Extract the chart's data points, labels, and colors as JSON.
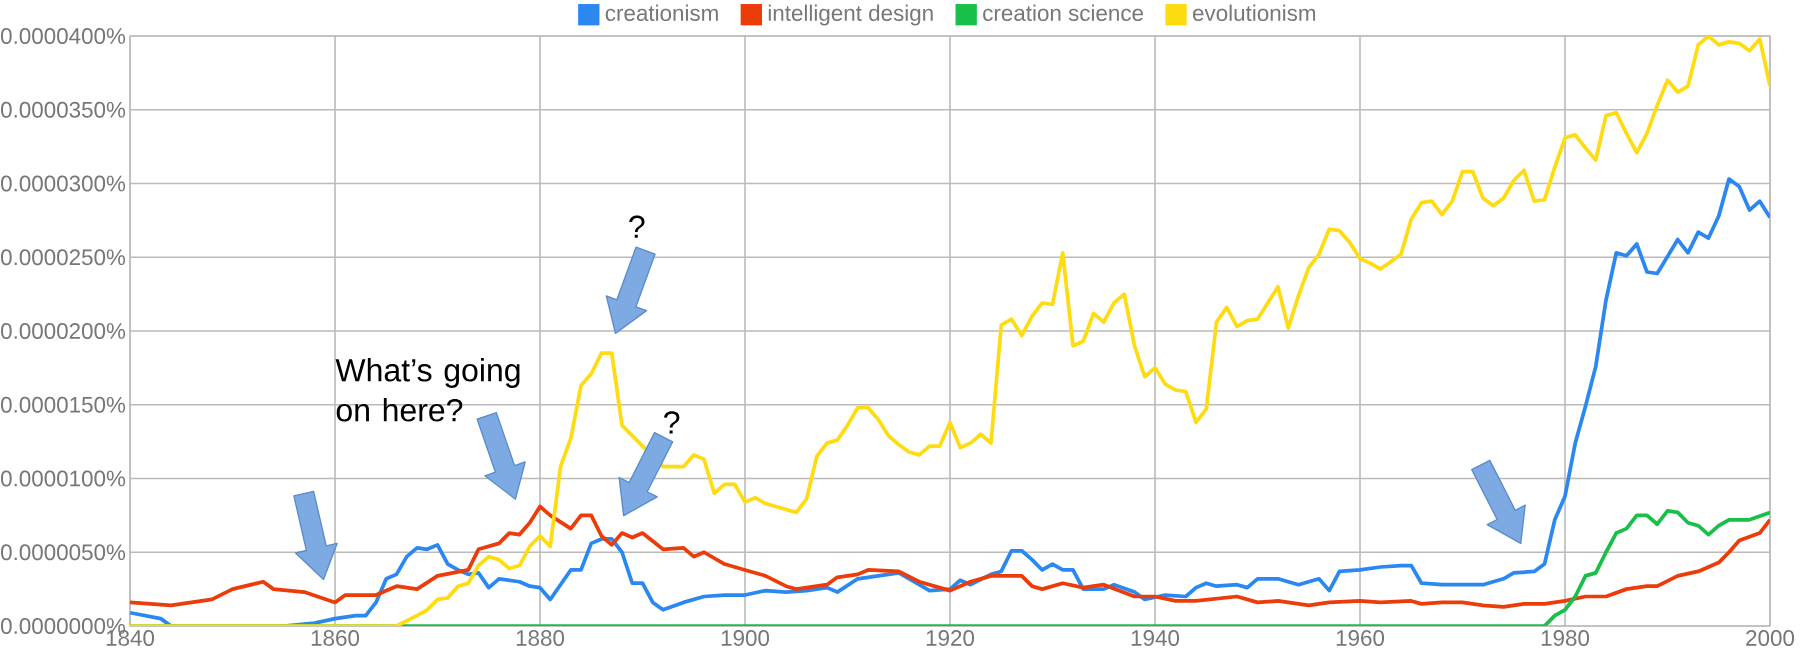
{
  "chart_data": {
    "type": "line",
    "xlim": [
      1840,
      2000
    ],
    "xticks": [
      1840,
      1860,
      1880,
      1900,
      1920,
      1940,
      1960,
      1980,
      2000
    ],
    "ylim": [
      0,
      4e-05
    ],
    "yticks": [
      {
        "value": 0,
        "label": "0.0000000%"
      },
      {
        "value": 5e-06,
        "label": "0.0000050%"
      },
      {
        "value": 1e-05,
        "label": "0.0000100%"
      },
      {
        "value": 1.5e-05,
        "label": "0.0000150%"
      },
      {
        "value": 2e-05,
        "label": "0.0000200%"
      },
      {
        "value": 2.5e-05,
        "label": "0.0000250%"
      },
      {
        "value": 3e-05,
        "label": "0.0000300%"
      },
      {
        "value": 3.5e-05,
        "label": "0.0000350%"
      },
      {
        "value": 4e-05,
        "label": "0.0000400%"
      }
    ],
    "grid": true,
    "legend": "top",
    "annotations": [
      "What’s going on here?",
      "?",
      "?"
    ],
    "series": [
      {
        "name": "creationism",
        "color": "#2a88f0",
        "x": [
          1840,
          1843,
          1844,
          1855,
          1858,
          1860,
          1862,
          1863,
          1864,
          1865,
          1866,
          1867,
          1868,
          1869,
          1870,
          1871,
          1872,
          1873,
          1874,
          1875,
          1876,
          1878,
          1879,
          1880,
          1881,
          1883,
          1884,
          1885,
          1886,
          1887,
          1888,
          1889,
          1890,
          1891,
          1892,
          1894,
          1896,
          1898,
          1900,
          1902,
          1904,
          1906,
          1908,
          1909,
          1911,
          1913,
          1915,
          1917,
          1918,
          1920,
          1921,
          1922,
          1924,
          1925,
          1926,
          1927,
          1928,
          1929,
          1930,
          1931,
          1932,
          1933,
          1935,
          1936,
          1938,
          1939,
          1941,
          1943,
          1944,
          1945,
          1946,
          1948,
          1949,
          1950,
          1952,
          1954,
          1955,
          1956,
          1957,
          1958,
          1960,
          1962,
          1964,
          1965,
          1966,
          1968,
          1970,
          1972,
          1974,
          1975,
          1977,
          1978,
          1979,
          1980,
          1981,
          1982,
          1983,
          1984,
          1985,
          1986,
          1987,
          1988,
          1989,
          1991,
          1992,
          1993,
          1994,
          1995,
          1996,
          1997,
          1998,
          1999,
          2000
        ],
        "values": [
          9e-07,
          5e-07,
          0,
          0,
          2e-07,
          5e-07,
          7e-07,
          7e-07,
          1.6e-06,
          3.2e-06,
          3.5e-06,
          4.7e-06,
          5.3e-06,
          5.2e-06,
          5.5e-06,
          4.2e-06,
          3.8e-06,
          3.5e-06,
          3.6e-06,
          2.6e-06,
          3.2e-06,
          3e-06,
          2.7e-06,
          2.6e-06,
          1.8e-06,
          3.8e-06,
          3.8e-06,
          5.6e-06,
          5.9e-06,
          5.9e-06,
          5e-06,
          2.9e-06,
          2.9e-06,
          1.6e-06,
          1.1e-06,
          1.6e-06,
          2e-06,
          2.1e-06,
          2.1e-06,
          2.4e-06,
          2.3e-06,
          2.4e-06,
          2.6e-06,
          2.3e-06,
          3.2e-06,
          3.4e-06,
          3.6e-06,
          2.8e-06,
          2.4e-06,
          2.5e-06,
          3.1e-06,
          2.8e-06,
          3.5e-06,
          3.7e-06,
          5.1e-06,
          5.1e-06,
          4.5e-06,
          3.8e-06,
          4.2e-06,
          3.8e-06,
          3.8e-06,
          2.5e-06,
          2.5e-06,
          2.8e-06,
          2.3e-06,
          1.8e-06,
          2.1e-06,
          2e-06,
          2.6e-06,
          2.9e-06,
          2.7e-06,
          2.8e-06,
          2.6e-06,
          3.2e-06,
          3.2e-06,
          2.8e-06,
          3e-06,
          3.2e-06,
          2.4e-06,
          3.7e-06,
          3.8e-06,
          4e-06,
          4.1e-06,
          4.1e-06,
          2.9e-06,
          2.8e-06,
          2.8e-06,
          2.8e-06,
          3.2e-06,
          3.6e-06,
          3.7e-06,
          4.2e-06,
          7.2e-06,
          8.8e-06,
          1.24e-05,
          1.49e-05,
          1.76e-05,
          2.21e-05,
          2.53e-05,
          2.51e-05,
          2.59e-05,
          2.4e-05,
          2.39e-05,
          2.62e-05,
          2.53e-05,
          2.67e-05,
          2.63e-05,
          2.78e-05,
          3.03e-05,
          2.98e-05,
          2.82e-05,
          2.88e-05,
          2.77e-05
        ]
      },
      {
        "name": "intelligent design",
        "color": "#ec3c0a",
        "x": [
          1840,
          1844,
          1848,
          1850,
          1853,
          1854,
          1857,
          1860,
          1861,
          1864,
          1866,
          1868,
          1870,
          1873,
          1874,
          1876,
          1877,
          1878,
          1879,
          1880,
          1881,
          1883,
          1884,
          1885,
          1886,
          1887,
          1888,
          1889,
          1890,
          1892,
          1894,
          1895,
          1896,
          1898,
          1900,
          1902,
          1904,
          1905,
          1906,
          1908,
          1909,
          1911,
          1912,
          1915,
          1917,
          1920,
          1922,
          1924,
          1927,
          1928,
          1929,
          1931,
          1933,
          1935,
          1938,
          1940,
          1942,
          1944,
          1948,
          1950,
          1952,
          1955,
          1957,
          1960,
          1962,
          1965,
          1966,
          1968,
          1970,
          1972,
          1974,
          1976,
          1978,
          1980,
          1982,
          1984,
          1986,
          1988,
          1989,
          1991,
          1993,
          1995,
          1996,
          1997,
          1999,
          2000
        ],
        "values": [
          1.6e-06,
          1.4e-06,
          1.8e-06,
          2.5e-06,
          3e-06,
          2.5e-06,
          2.3e-06,
          1.6e-06,
          2.1e-06,
          2.1e-06,
          2.7e-06,
          2.5e-06,
          3.4e-06,
          3.8e-06,
          5.2e-06,
          5.6e-06,
          6.3e-06,
          6.2e-06,
          7e-06,
          8.1e-06,
          7.5e-06,
          6.6e-06,
          7.5e-06,
          7.5e-06,
          6.1e-06,
          5.5e-06,
          6.3e-06,
          6e-06,
          6.3e-06,
          5.2e-06,
          5.3e-06,
          4.7e-06,
          5e-06,
          4.2e-06,
          3.8e-06,
          3.4e-06,
          2.7e-06,
          2.5e-06,
          2.6e-06,
          2.8e-06,
          3.3e-06,
          3.5e-06,
          3.8e-06,
          3.7e-06,
          3e-06,
          2.4e-06,
          3e-06,
          3.4e-06,
          3.4e-06,
          2.7e-06,
          2.5e-06,
          2.9e-06,
          2.6e-06,
          2.8e-06,
          2e-06,
          2e-06,
          1.7e-06,
          1.7e-06,
          2e-06,
          1.6e-06,
          1.7e-06,
          1.4e-06,
          1.6e-06,
          1.7e-06,
          1.6e-06,
          1.7e-06,
          1.5e-06,
          1.6e-06,
          1.6e-06,
          1.4e-06,
          1.3e-06,
          1.5e-06,
          1.5e-06,
          1.7e-06,
          2e-06,
          2e-06,
          2.5e-06,
          2.7e-06,
          2.7e-06,
          3.4e-06,
          3.7e-06,
          4.3e-06,
          5e-06,
          5.8e-06,
          6.3e-06,
          7.2e-06
        ]
      },
      {
        "name": "creation science",
        "color": "#18c04a",
        "x": [
          1840,
          1860,
          1880,
          1900,
          1920,
          1940,
          1960,
          1978,
          1979,
          1980,
          1981,
          1982,
          1983,
          1984,
          1985,
          1986,
          1987,
          1988,
          1989,
          1990,
          1991,
          1992,
          1993,
          1994,
          1995,
          1996,
          1998,
          2000
        ],
        "values": [
          0,
          0,
          0,
          0,
          0,
          0,
          0,
          0,
          7e-07,
          1.1e-06,
          2e-06,
          3.4e-06,
          3.6e-06,
          5e-06,
          6.3e-06,
          6.6e-06,
          7.5e-06,
          7.5e-06,
          6.9e-06,
          7.8e-06,
          7.7e-06,
          7e-06,
          6.8e-06,
          6.2e-06,
          6.8e-06,
          7.2e-06,
          7.2e-06,
          7.7e-06
        ]
      },
      {
        "name": "evolutionism",
        "color": "#ffdc12",
        "x": [
          1840,
          1866,
          1868,
          1869,
          1870,
          1871,
          1872,
          1873,
          1874,
          1875,
          1876,
          1877,
          1878,
          1879,
          1880,
          1881,
          1882,
          1883,
          1884,
          1885,
          1886,
          1887,
          1888,
          1889,
          1890,
          1891,
          1892,
          1894,
          1895,
          1896,
          1897,
          1898,
          1899,
          1900,
          1901,
          1902,
          1903,
          1904,
          1905,
          1906,
          1907,
          1908,
          1909,
          1910,
          1911,
          1912,
          1913,
          1914,
          1915,
          1916,
          1917,
          1918,
          1919,
          1920,
          1921,
          1922,
          1923,
          1924,
          1925,
          1926,
          1927,
          1928,
          1929,
          1930,
          1931,
          1932,
          1933,
          1934,
          1935,
          1936,
          1937,
          1938,
          1939,
          1940,
          1941,
          1942,
          1943,
          1944,
          1945,
          1946,
          1947,
          1948,
          1949,
          1950,
          1951,
          1952,
          1953,
          1954,
          1955,
          1956,
          1957,
          1958,
          1959,
          1960,
          1961,
          1962,
          1963,
          1964,
          1965,
          1966,
          1967,
          1968,
          1969,
          1970,
          1971,
          1972,
          1973,
          1974,
          1975,
          1976,
          1977,
          1978,
          1979,
          1980,
          1981,
          1982,
          1983,
          1984,
          1985,
          1986,
          1987,
          1988,
          1989,
          1990,
          1991,
          1992,
          1993,
          1994,
          1995,
          1996,
          1997,
          1998,
          1999,
          2000
        ],
        "values": [
          0,
          0,
          7e-07,
          1.1e-06,
          1.8e-06,
          1.9e-06,
          2.7e-06,
          2.9e-06,
          4.1e-06,
          4.7e-06,
          4.5e-06,
          3.9e-06,
          4.1e-06,
          5.4e-06,
          6.1e-06,
          5.4e-06,
          1.08e-05,
          1.27e-05,
          1.63e-05,
          1.71e-05,
          1.85e-05,
          1.85e-05,
          1.36e-05,
          null,
          null,
          null,
          1.08e-05,
          1.08e-05,
          1.16e-05,
          1.13e-05,
          9e-06,
          9.6e-06,
          9.6e-06,
          8.4e-06,
          8.7e-06,
          8.3e-06,
          8.1e-06,
          7.9e-06,
          7.7e-06,
          8.6e-06,
          1.15e-05,
          1.24e-05,
          1.26e-05,
          1.36e-05,
          1.48e-05,
          1.48e-05,
          1.4e-05,
          1.29e-05,
          1.23e-05,
          1.18e-05,
          1.16e-05,
          1.22e-05,
          1.22e-05,
          1.38e-05,
          1.21e-05,
          1.24e-05,
          1.3e-05,
          1.24e-05,
          2.04e-05,
          2.08e-05,
          1.97e-05,
          2.1e-05,
          2.19e-05,
          2.18e-05,
          2.53e-05,
          1.9e-05,
          1.93e-05,
          2.12e-05,
          2.06e-05,
          2.19e-05,
          2.25e-05,
          1.9e-05,
          1.69e-05,
          1.75e-05,
          1.64e-05,
          1.6e-05,
          1.59e-05,
          1.38e-05,
          1.47e-05,
          2.06e-05,
          2.16e-05,
          2.03e-05,
          2.07e-05,
          2.08e-05,
          2.19e-05,
          2.3e-05,
          2.02e-05,
          2.24e-05,
          2.43e-05,
          2.52e-05,
          2.69e-05,
          2.68e-05,
          2.6e-05,
          2.49e-05,
          2.46e-05,
          2.42e-05,
          2.47e-05,
          2.52e-05,
          2.76e-05,
          2.87e-05,
          2.88e-05,
          2.79e-05,
          2.88e-05,
          3.08e-05,
          3.08e-05,
          2.9e-05,
          2.85e-05,
          2.9e-05,
          3.02e-05,
          3.09e-05,
          2.88e-05,
          2.89e-05,
          3.11e-05,
          3.31e-05,
          3.33e-05,
          3.24e-05,
          3.16e-05,
          3.46e-05,
          3.48e-05,
          3.34e-05,
          3.21e-05,
          3.34e-05,
          3.53e-05,
          3.7e-05,
          3.62e-05,
          3.66e-05,
          3.94e-05,
          4e-05,
          3.94e-05,
          3.96e-05,
          3.95e-05,
          3.9e-05,
          3.98e-05,
          3.66e-05
        ]
      }
    ]
  }
}
